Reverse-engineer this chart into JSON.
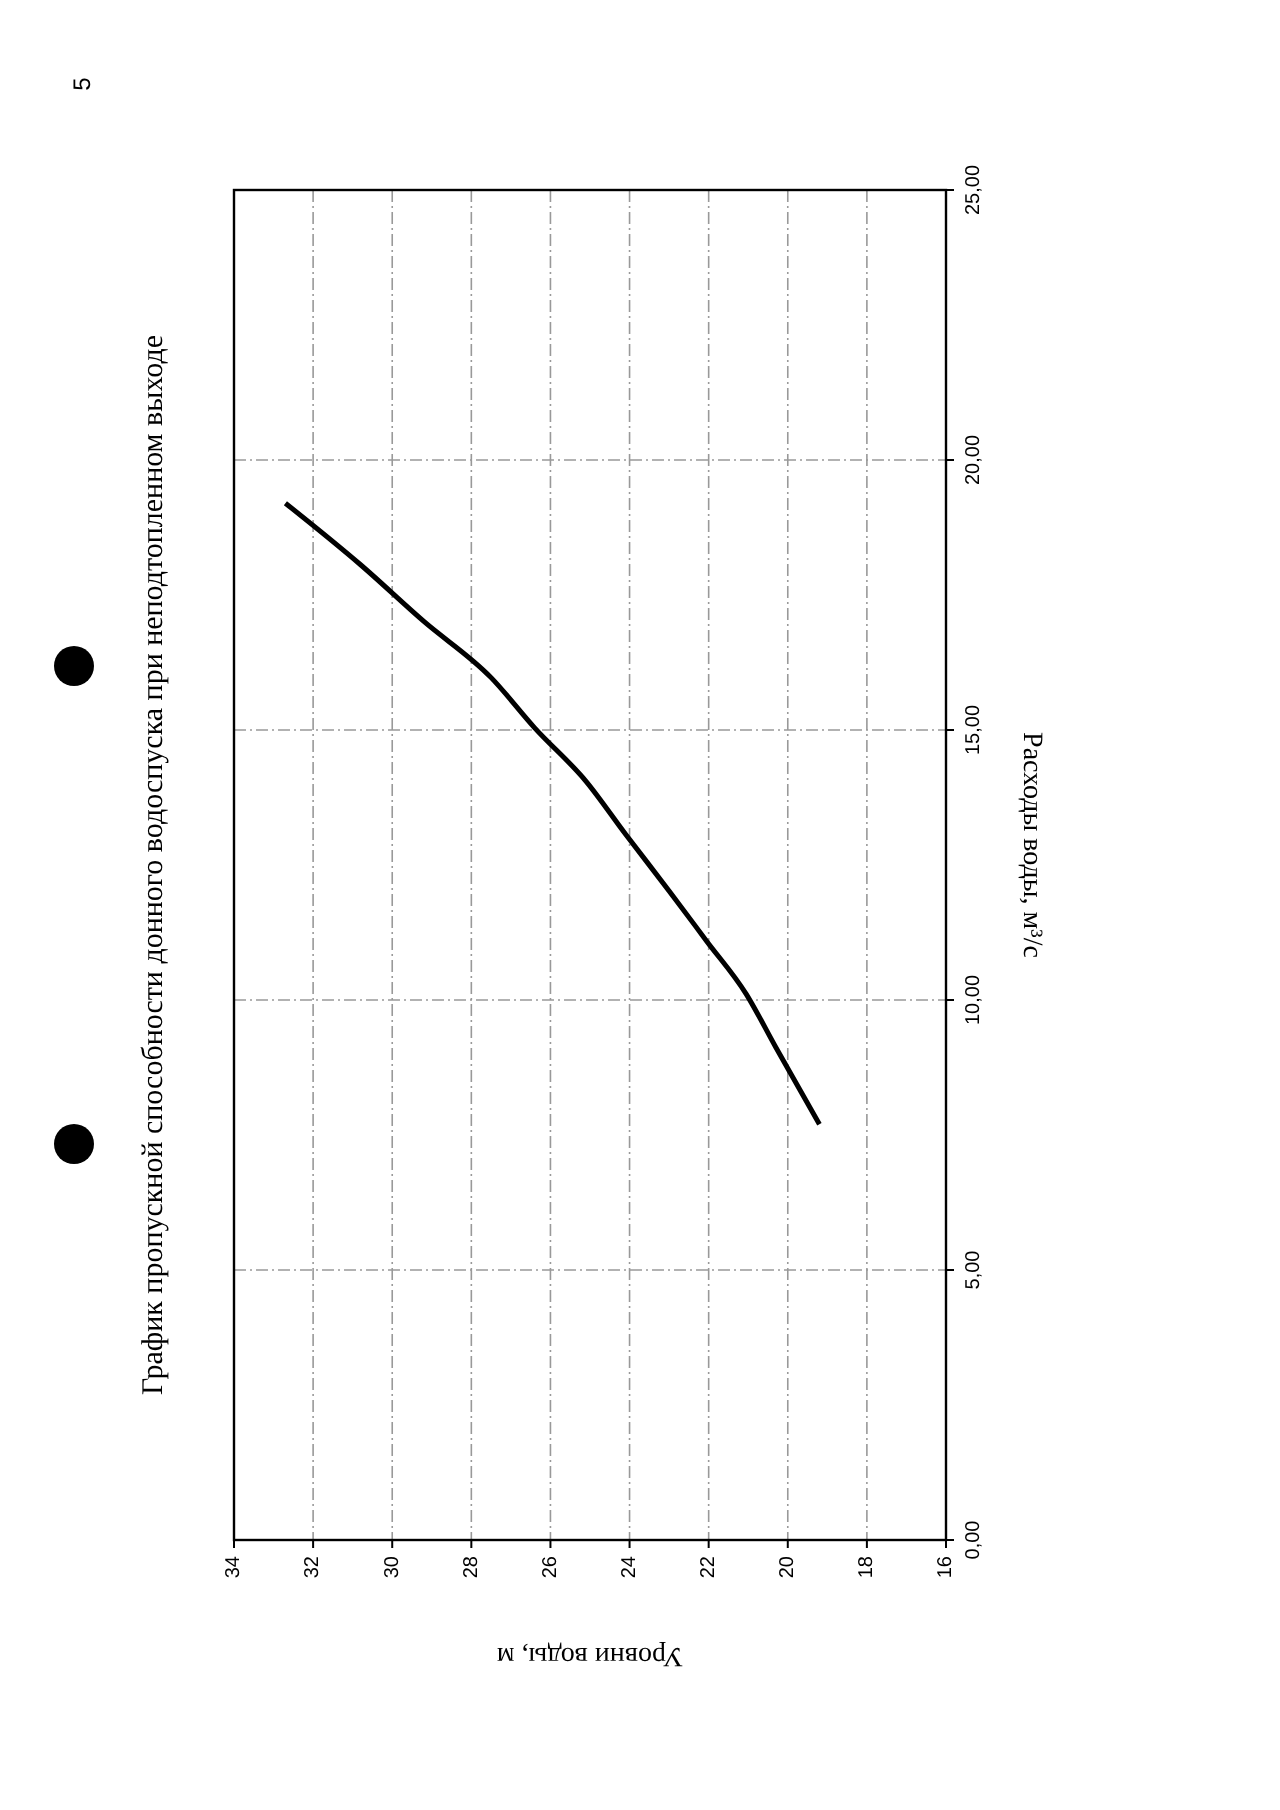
{
  "chart_data": {
    "type": "line",
    "title": "График пропускной способности донного водоспуска при неподтопленном выходе",
    "xlabel": "Уровни воды, м",
    "ylabel": "Расходы воды, м³/с",
    "annotations": [
      "5"
    ],
    "x": [
      19.2,
      20.3,
      21.05,
      22.05,
      23.0,
      24.1,
      25.1,
      26.4,
      27.5,
      29.2,
      30.8,
      32.7
    ],
    "series": [
      {
        "color": "#000000",
        "values": [
          7.7,
          9.12,
          10.11,
          11.09,
          12.02,
          13.07,
          14.05,
          15.04,
          15.97,
          17.01,
          18.06,
          19.2
        ]
      }
    ],
    "xlim": [
      34,
      16
    ],
    "xticks": [
      34,
      32,
      30,
      28,
      26,
      24,
      22,
      20,
      18,
      16
    ],
    "ylim": [
      0,
      25
    ],
    "yticks": [
      {
        "value": 0,
        "label": "0,00"
      },
      {
        "value": 5,
        "label": "5,00"
      },
      {
        "value": 10,
        "label": "10,00"
      },
      {
        "value": 15,
        "label": "15,00"
      },
      {
        "value": 20,
        "label": "20,00"
      },
      {
        "value": 25,
        "label": "25,00"
      }
    ],
    "grid": true,
    "marker": "none",
    "line_style": "solid"
  }
}
